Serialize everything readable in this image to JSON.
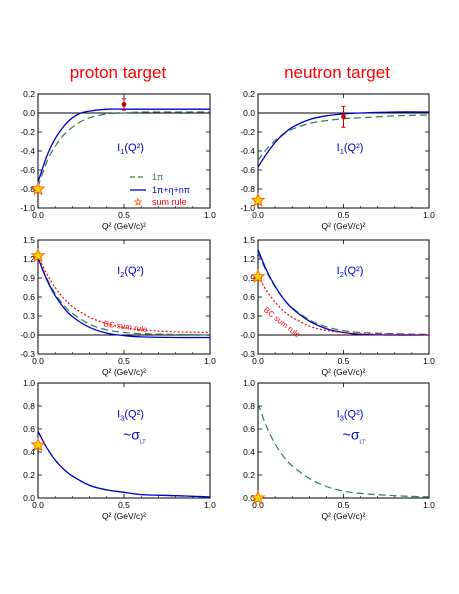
{
  "columns": {
    "left": "proton target",
    "right": "neutron target"
  },
  "axis_label_x": "Q² (GeV/c)²",
  "legend": {
    "one_pi": "1π",
    "full": "1π+η+nπ",
    "sum_rule": "sum rule"
  },
  "colors": {
    "dashed": "#2e7d4f",
    "solid": "#0000cc",
    "dotted": "#ff0000",
    "point": "#cc0000",
    "star_fill": "#ffd700",
    "star_stroke": "#ff6600"
  },
  "chart_data": [
    {
      "type": "line",
      "panel": "I1 proton",
      "label_main": "I",
      "label_sub": "1",
      "label_tail": "(Q²)",
      "xlim": [
        0,
        1
      ],
      "ylim": [
        -1,
        0.2
      ],
      "xticks": [
        "0.0",
        "0.5",
        "1.0"
      ],
      "yticks": [
        "0.2",
        "0.0",
        "-0.2",
        "-0.4",
        "-0.6",
        "-0.8",
        "-1.0"
      ],
      "yticks_values": [
        0.2,
        0,
        -0.2,
        -0.4,
        -0.6,
        -0.8,
        -1.0
      ],
      "series": [
        {
          "name": "1π",
          "style": "dashed",
          "x": [
            0,
            0.05,
            0.1,
            0.15,
            0.2,
            0.25,
            0.3,
            0.4,
            0.5,
            0.6,
            0.8,
            1.0
          ],
          "y": [
            -0.78,
            -0.52,
            -0.35,
            -0.23,
            -0.15,
            -0.09,
            -0.05,
            -0.01,
            0.0,
            0.01,
            0.01,
            0.01
          ]
        },
        {
          "name": "1π+η+nπ",
          "style": "solid",
          "x": [
            0,
            0.05,
            0.1,
            0.15,
            0.2,
            0.25,
            0.3,
            0.4,
            0.5,
            0.6,
            0.8,
            1.0
          ],
          "y": [
            -0.73,
            -0.46,
            -0.27,
            -0.14,
            -0.05,
            0.0,
            0.02,
            0.04,
            0.04,
            0.04,
            0.04,
            0.04
          ]
        }
      ],
      "points": [
        {
          "x": 0.5,
          "y": 0.09,
          "err": 0.06
        }
      ],
      "sum_rule_star": {
        "x": 0,
        "y": -0.8
      },
      "zero_line": true
    },
    {
      "type": "line",
      "panel": "I1 neutron",
      "label_main": "I",
      "label_sub": "1",
      "label_tail": "(Q²)",
      "xlim": [
        0,
        1
      ],
      "ylim": [
        -1,
        0.2
      ],
      "xticks": [
        "0.0",
        "0.5",
        "1.0"
      ],
      "yticks": [
        "0.2",
        "0.0",
        "-0.2",
        "-0.4",
        "-0.6",
        "-0.8",
        "-1.0"
      ],
      "yticks_values": [
        0.2,
        0,
        -0.2,
        -0.4,
        -0.6,
        -0.8,
        -1.0
      ],
      "series": [
        {
          "name": "1π",
          "style": "dashed",
          "x": [
            0,
            0.05,
            0.1,
            0.15,
            0.2,
            0.3,
            0.4,
            0.5,
            0.6,
            0.8,
            1.0
          ],
          "y": [
            -0.5,
            -0.38,
            -0.29,
            -0.22,
            -0.17,
            -0.11,
            -0.08,
            -0.06,
            -0.05,
            -0.03,
            -0.02
          ]
        },
        {
          "name": "1π+η+nπ",
          "style": "solid",
          "x": [
            0,
            0.05,
            0.1,
            0.15,
            0.2,
            0.3,
            0.4,
            0.5,
            0.6,
            0.8,
            1.0
          ],
          "y": [
            -0.57,
            -0.43,
            -0.31,
            -0.22,
            -0.15,
            -0.07,
            -0.03,
            -0.01,
            0.0,
            0.01,
            0.01
          ]
        }
      ],
      "points": [
        {
          "x": 0.5,
          "y": -0.04,
          "err": 0.11
        }
      ],
      "sum_rule_star": {
        "x": 0,
        "y": -0.92
      },
      "zero_line": true
    },
    {
      "type": "line",
      "panel": "I2 proton",
      "label_main": "I",
      "label_sub": "2",
      "label_tail": "(Q²)",
      "xlim": [
        0,
        1
      ],
      "ylim": [
        -0.3,
        1.5
      ],
      "xticks": [
        "0.0",
        "0.5",
        "1.0"
      ],
      "yticks": [
        "1.5",
        "1.2",
        "0.9",
        "0.6",
        "0.3",
        "-0.0",
        "-0.3"
      ],
      "yticks_values": [
        1.5,
        1.2,
        0.9,
        0.6,
        0.3,
        0,
        -0.3
      ],
      "series": [
        {
          "name": "1π",
          "style": "dashed",
          "x": [
            0,
            0.05,
            0.1,
            0.15,
            0.2,
            0.3,
            0.4,
            0.5,
            0.6,
            0.8,
            1.0
          ],
          "y": [
            1.22,
            0.9,
            0.65,
            0.47,
            0.34,
            0.17,
            0.08,
            0.04,
            0.02,
            0.01,
            0.0
          ]
        },
        {
          "name": "1π+η+nπ",
          "style": "solid",
          "x": [
            0,
            0.05,
            0.1,
            0.15,
            0.2,
            0.3,
            0.4,
            0.5,
            0.6,
            0.8,
            1.0
          ],
          "y": [
            1.22,
            0.88,
            0.62,
            0.43,
            0.29,
            0.12,
            0.03,
            -0.01,
            -0.03,
            -0.04,
            -0.04
          ]
        },
        {
          "name": "BC sum rule",
          "style": "dotted",
          "x": [
            0,
            0.05,
            0.1,
            0.15,
            0.2,
            0.3,
            0.4,
            0.5,
            0.6,
            0.8,
            1.0
          ],
          "y": [
            1.25,
            0.97,
            0.75,
            0.58,
            0.45,
            0.28,
            0.18,
            0.12,
            0.08,
            0.05,
            0.04
          ]
        }
      ],
      "points": [],
      "sum_rule_star": {
        "x": 0,
        "y": 1.25
      },
      "zero_line": true,
      "note": "BC sum rule",
      "note_at": {
        "x": 0.38,
        "y": 0.14
      }
    },
    {
      "type": "line",
      "panel": "I2 neutron",
      "label_main": "I",
      "label_sub": "2",
      "label_tail": "(Q²)",
      "xlim": [
        0,
        1
      ],
      "ylim": [
        -0.3,
        1.5
      ],
      "xticks": [
        "0.0",
        "0.5",
        "1.0"
      ],
      "yticks": [
        "1.5",
        "1.2",
        "0.9",
        "0.6",
        "0.3",
        "-0.0",
        "-0.3"
      ],
      "yticks_values": [
        1.5,
        1.2,
        0.9,
        0.6,
        0.3,
        0,
        -0.3
      ],
      "series": [
        {
          "name": "1π",
          "style": "dashed",
          "x": [
            0,
            0.05,
            0.1,
            0.15,
            0.2,
            0.3,
            0.4,
            0.5,
            0.6,
            0.8,
            1.0
          ],
          "y": [
            1.3,
            1.0,
            0.76,
            0.57,
            0.43,
            0.24,
            0.13,
            0.07,
            0.04,
            0.02,
            0.01
          ]
        },
        {
          "name": "1π+η+nπ",
          "style": "solid",
          "x": [
            0,
            0.05,
            0.1,
            0.15,
            0.2,
            0.3,
            0.4,
            0.5,
            0.6,
            0.8,
            1.0
          ],
          "y": [
            1.35,
            1.02,
            0.77,
            0.57,
            0.42,
            0.22,
            0.1,
            0.04,
            0.01,
            0.0,
            0.0
          ]
        },
        {
          "name": "BC sum rule",
          "style": "dotted",
          "x": [
            0,
            0.05,
            0.1,
            0.15,
            0.2,
            0.3,
            0.4,
            0.5,
            0.6,
            0.8,
            1.0
          ],
          "y": [
            0.92,
            0.7,
            0.52,
            0.38,
            0.28,
            0.14,
            0.07,
            0.04,
            0.02,
            0.01,
            0.0
          ]
        }
      ],
      "points": [],
      "sum_rule_star": {
        "x": 0,
        "y": 0.92
      },
      "zero_line": true,
      "note": "BC sum rule",
      "note_at": {
        "x": 0.03,
        "y": 0.38
      }
    },
    {
      "type": "line",
      "panel": "I3 proton",
      "label_main": "I",
      "label_sub": "3",
      "label_tail": "(Q²)",
      "label_sigma": "~σ",
      "label_sigma_sub": "LT'",
      "xlim": [
        0,
        1
      ],
      "ylim": [
        0,
        1
      ],
      "xticks": [
        "0.0",
        "0.5",
        "1.0"
      ],
      "yticks": [
        "1.0",
        "0.8",
        "0.6",
        "0.4",
        "0.2",
        "0.0"
      ],
      "yticks_values": [
        1.0,
        0.8,
        0.6,
        0.4,
        0.2,
        0
      ],
      "series": [
        {
          "name": "1π",
          "style": "dashed",
          "x": [
            0,
            0.05,
            0.1,
            0.15,
            0.2,
            0.3,
            0.4,
            0.5,
            0.6,
            0.8,
            1.0
          ],
          "y": [
            0.58,
            0.44,
            0.33,
            0.25,
            0.19,
            0.11,
            0.07,
            0.05,
            0.03,
            0.02,
            0.01
          ]
        },
        {
          "name": "1π+η+nπ",
          "style": "solid",
          "x": [
            0,
            0.05,
            0.1,
            0.15,
            0.2,
            0.3,
            0.4,
            0.5,
            0.6,
            0.8,
            1.0
          ],
          "y": [
            0.58,
            0.44,
            0.33,
            0.25,
            0.19,
            0.11,
            0.07,
            0.05,
            0.03,
            0.02,
            0.01
          ]
        }
      ],
      "points": [],
      "sum_rule_star": {
        "x": 0,
        "y": 0.46
      },
      "zero_line": false
    },
    {
      "type": "line",
      "panel": "I3 neutron",
      "label_main": "I",
      "label_sub": "3",
      "label_tail": "(Q²)",
      "label_sigma": "~σ",
      "label_sigma_sub": "LT'",
      "xlim": [
        0,
        1
      ],
      "ylim": [
        0,
        1
      ],
      "xticks": [
        "0.0",
        "0.5",
        "1.0"
      ],
      "yticks": [
        "1.0",
        "0.8",
        "0.6",
        "0.4",
        "0.2",
        "0.0"
      ],
      "yticks_values": [
        1.0,
        0.8,
        0.6,
        0.4,
        0.2,
        0
      ],
      "series": [
        {
          "name": "1π",
          "style": "dashed",
          "x": [
            0,
            0.05,
            0.1,
            0.15,
            0.2,
            0.3,
            0.4,
            0.5,
            0.6,
            0.8,
            1.0
          ],
          "y": [
            0.82,
            0.62,
            0.47,
            0.36,
            0.28,
            0.17,
            0.1,
            0.06,
            0.04,
            0.02,
            0.01
          ]
        }
      ],
      "points": [],
      "sum_rule_star": {
        "x": 0,
        "y": 0.0
      },
      "zero_line": false
    }
  ]
}
